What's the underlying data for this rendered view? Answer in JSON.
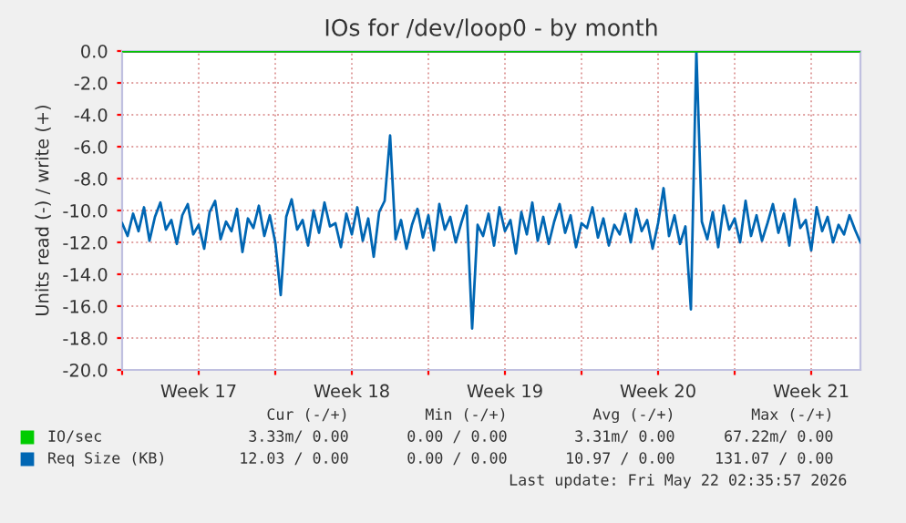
{
  "chart_data": {
    "type": "line",
    "title": "IOs for /dev/loop0 - by month",
    "ylabel": "Units read (-) / write (+)",
    "xlim": [
      "2026-04-20T00:00",
      "2026-05-23T18:00"
    ],
    "xticks": [
      {
        "value": "2026-04-20T00:00",
        "label": null
      },
      {
        "value": "2026-04-23T12:00",
        "label": "Week 17"
      },
      {
        "value": "2026-04-27T00:00",
        "label": null
      },
      {
        "value": "2026-04-30T12:00",
        "label": "Week 18"
      },
      {
        "value": "2026-05-04T00:00",
        "label": null
      },
      {
        "value": "2026-05-07T12:00",
        "label": "Week 19"
      },
      {
        "value": "2026-05-11T00:00",
        "label": null
      },
      {
        "value": "2026-05-14T12:00",
        "label": "Week 20"
      },
      {
        "value": "2026-05-18T00:00",
        "label": null
      },
      {
        "value": "2026-05-21T12:00",
        "label": "Week 21"
      }
    ],
    "ylim": [
      -20,
      0
    ],
    "yticks": [
      {
        "value": -20,
        "label": "-20.0"
      },
      {
        "value": -18,
        "label": "-18.0"
      },
      {
        "value": -16,
        "label": "-16.0"
      },
      {
        "value": -14,
        "label": "-14.0"
      },
      {
        "value": -12,
        "label": "-12.0"
      },
      {
        "value": -10,
        "label": "-10.0"
      },
      {
        "value": -8,
        "label": "-8.0"
      },
      {
        "value": -6,
        "label": "-6.0"
      },
      {
        "value": -4,
        "label": "-4.0"
      },
      {
        "value": -2,
        "label": "-2.0"
      },
      {
        "value": 0,
        "label": "0.0"
      }
    ],
    "grid": true,
    "legend": "bottom left",
    "line_style": "solid",
    "marker": "none",
    "ref_lines": [
      {
        "axis": "y",
        "value": 0,
        "color": "#000000"
      }
    ],
    "series": [
      {
        "name": "IO/sec",
        "color": "#00cc00",
        "x": [
          "2026-04-20T00:00",
          "2026-05-23T18:00"
        ],
        "values": [
          0,
          0
        ]
      },
      {
        "name": "Req Size (KB)",
        "color": "#0066b3",
        "x": [
          "2026-04-20T00:00",
          "2026-04-20T06:00",
          "2026-04-20T12:00",
          "2026-04-20T18:00",
          "2026-04-21T00:00",
          "2026-04-21T06:00",
          "2026-04-21T12:00",
          "2026-04-21T18:00",
          "2026-04-22T00:00",
          "2026-04-22T06:00",
          "2026-04-22T12:00",
          "2026-04-22T18:00",
          "2026-04-23T00:00",
          "2026-04-23T06:00",
          "2026-04-23T12:00",
          "2026-04-23T18:00",
          "2026-04-24T00:00",
          "2026-04-24T06:00",
          "2026-04-24T12:00",
          "2026-04-24T18:00",
          "2026-04-25T00:00",
          "2026-04-25T06:00",
          "2026-04-25T12:00",
          "2026-04-25T18:00",
          "2026-04-26T00:00",
          "2026-04-26T06:00",
          "2026-04-26T12:00",
          "2026-04-26T18:00",
          "2026-04-27T00:00",
          "2026-04-27T06:00",
          "2026-04-27T12:00",
          "2026-04-27T18:00",
          "2026-04-28T00:00",
          "2026-04-28T06:00",
          "2026-04-28T12:00",
          "2026-04-28T18:00",
          "2026-04-29T00:00",
          "2026-04-29T06:00",
          "2026-04-29T12:00",
          "2026-04-29T18:00",
          "2026-04-30T00:00",
          "2026-04-30T06:00",
          "2026-04-30T12:00",
          "2026-04-30T18:00",
          "2026-05-01T00:00",
          "2026-05-01T06:00",
          "2026-05-01T12:00",
          "2026-05-01T18:00",
          "2026-05-02T00:00",
          "2026-05-02T06:00",
          "2026-05-02T12:00",
          "2026-05-02T18:00",
          "2026-05-03T00:00",
          "2026-05-03T06:00",
          "2026-05-03T12:00",
          "2026-05-03T18:00",
          "2026-05-04T00:00",
          "2026-05-04T06:00",
          "2026-05-04T12:00",
          "2026-05-04T18:00",
          "2026-05-05T00:00",
          "2026-05-05T06:00",
          "2026-05-05T12:00",
          "2026-05-05T18:00",
          "2026-05-06T00:00",
          "2026-05-06T06:00",
          "2026-05-06T12:00",
          "2026-05-06T18:00",
          "2026-05-07T00:00",
          "2026-05-07T06:00",
          "2026-05-07T12:00",
          "2026-05-07T18:00",
          "2026-05-08T00:00",
          "2026-05-08T06:00",
          "2026-05-08T12:00",
          "2026-05-08T18:00",
          "2026-05-09T00:00",
          "2026-05-09T06:00",
          "2026-05-09T12:00",
          "2026-05-09T18:00",
          "2026-05-10T00:00",
          "2026-05-10T06:00",
          "2026-05-10T12:00",
          "2026-05-10T18:00",
          "2026-05-11T00:00",
          "2026-05-11T06:00",
          "2026-05-11T12:00",
          "2026-05-11T18:00",
          "2026-05-12T00:00",
          "2026-05-12T06:00",
          "2026-05-12T12:00",
          "2026-05-12T18:00",
          "2026-05-13T00:00",
          "2026-05-13T06:00",
          "2026-05-13T12:00",
          "2026-05-13T18:00",
          "2026-05-14T00:00",
          "2026-05-14T06:00",
          "2026-05-14T12:00",
          "2026-05-14T18:00",
          "2026-05-15T00:00",
          "2026-05-15T06:00",
          "2026-05-15T12:00",
          "2026-05-15T18:00",
          "2026-05-16T00:00",
          "2026-05-16T06:00",
          "2026-05-16T12:00",
          "2026-05-16T18:00",
          "2026-05-17T00:00",
          "2026-05-17T06:00",
          "2026-05-17T12:00",
          "2026-05-17T18:00",
          "2026-05-18T00:00",
          "2026-05-18T06:00",
          "2026-05-18T12:00",
          "2026-05-18T18:00",
          "2026-05-19T00:00",
          "2026-05-19T06:00",
          "2026-05-19T12:00",
          "2026-05-19T18:00",
          "2026-05-20T00:00",
          "2026-05-20T06:00",
          "2026-05-20T12:00",
          "2026-05-20T18:00",
          "2026-05-21T00:00",
          "2026-05-21T06:00",
          "2026-05-21T12:00",
          "2026-05-21T18:00",
          "2026-05-22T00:00",
          "2026-05-22T06:00",
          "2026-05-22T12:00",
          "2026-05-22T18:00",
          "2026-05-23T00:00",
          "2026-05-23T06:00",
          "2026-05-23T12:00",
          "2026-05-23T18:00"
        ],
        "values": [
          -10.8,
          -11.6,
          -10.2,
          -11.3,
          -9.8,
          -11.9,
          -10.4,
          -9.5,
          -11.2,
          -10.6,
          -12.1,
          -10.3,
          -9.6,
          -11.5,
          -10.9,
          -12.4,
          -10.1,
          -9.4,
          -11.8,
          -10.7,
          -11.3,
          -9.9,
          -12.6,
          -10.5,
          -11.1,
          -9.7,
          -11.6,
          -10.3,
          -12.0,
          -15.3,
          -10.4,
          -9.3,
          -11.2,
          -10.6,
          -12.2,
          -10.0,
          -11.4,
          -9.5,
          -11.0,
          -10.8,
          -12.3,
          -10.2,
          -11.5,
          -9.8,
          -11.9,
          -10.5,
          -12.9,
          -10.1,
          -9.4,
          -5.3,
          -11.8,
          -10.6,
          -12.4,
          -10.9,
          -9.9,
          -11.7,
          -10.3,
          -12.5,
          -9.6,
          -11.2,
          -10.4,
          -12.0,
          -10.8,
          -9.7,
          -17.4,
          -10.9,
          -11.6,
          -10.2,
          -12.2,
          -9.8,
          -11.3,
          -10.6,
          -12.7,
          -10.1,
          -11.5,
          -9.5,
          -11.9,
          -10.4,
          -12.1,
          -10.7,
          -9.6,
          -11.4,
          -10.3,
          -12.3,
          -10.8,
          -11.1,
          -9.8,
          -11.7,
          -10.5,
          -12.2,
          -10.9,
          -11.5,
          -10.2,
          -12.0,
          -9.9,
          -11.3,
          -10.6,
          -12.4,
          -10.8,
          -8.6,
          -11.6,
          -10.3,
          -12.1,
          -11.0,
          -16.2,
          0.0,
          -10.7,
          -11.8,
          -10.1,
          -12.3,
          -9.7,
          -11.2,
          -10.5,
          -12.0,
          -9.4,
          -11.6,
          -10.3,
          -11.9,
          -10.8,
          -9.6,
          -11.4,
          -10.2,
          -12.2,
          -9.3,
          -11.1,
          -10.6,
          -12.5,
          -9.8,
          -11.3,
          -10.4,
          -12.0,
          -10.9,
          -11.5,
          -10.3,
          -11.2,
          -12.0
        ]
      }
    ],
    "annotations": [
      "Cur (-/+)",
      "Min (-/+)",
      "Avg (-/+)",
      "Max (-/+)",
      "3.33m/ 0.00",
      "0.00 / 0.00",
      "3.31m/ 0.00",
      "67.22m/ 0.00",
      "12.03 / 0.00",
      "0.00 / 0.00",
      "10.97 / 0.00",
      "131.07 / 0.00",
      "Last update: Fri May 22 02:35:57 2026"
    ]
  }
}
